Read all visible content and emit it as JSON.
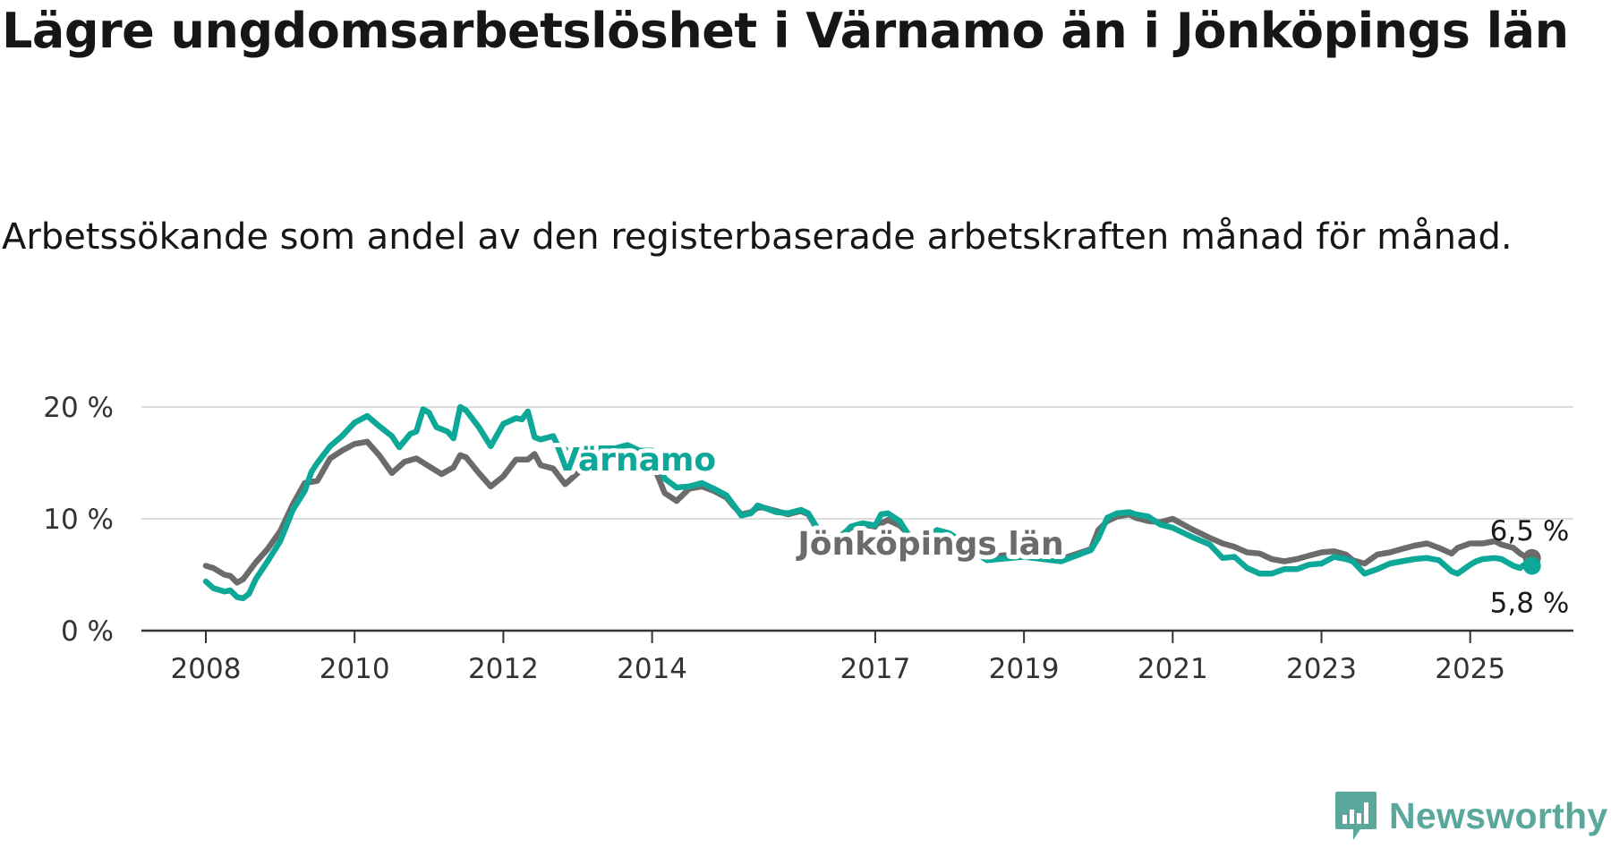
{
  "title": "Lägre ungdomsarbetslöshet i Värnamo än i Jönköpings län",
  "subtitle": "Arbetssökande som andel av den registerbaserade arbetskraften månad för månad.",
  "brand": {
    "name": "Newsworthy",
    "icon": "newsworthy-logo-icon",
    "color": "#5aa89c"
  },
  "colors": {
    "varnamo": "#0ea899",
    "jonkoping": "#6b6b6b",
    "grid": "#dddddd",
    "axis": "#333333"
  },
  "chart_data": {
    "type": "line",
    "x_unit": "year (decimal)",
    "y_unit": "%",
    "ylim": [
      0,
      20
    ],
    "xlim": [
      2007.1,
      2026.2
    ],
    "y_ticks": [
      0,
      10,
      20
    ],
    "y_tick_labels": [
      "0 %",
      "10 %",
      "20 %"
    ],
    "x_ticks": [
      2008,
      2010,
      2012,
      2014,
      2017,
      2019,
      2021,
      2023,
      2025
    ],
    "x_tick_labels": [
      "2008",
      "2010",
      "2012",
      "2014",
      "2017",
      "2019",
      "2021",
      "2023",
      "2025"
    ],
    "grid": "horizontal",
    "series": [
      {
        "name": "Värnamo",
        "color": "#0ea899",
        "end_label": "5,8 %",
        "points": [
          [
            2008.0,
            4.4
          ],
          [
            2008.1,
            3.8
          ],
          [
            2008.25,
            3.5
          ],
          [
            2008.33,
            3.6
          ],
          [
            2008.42,
            3.0
          ],
          [
            2008.5,
            2.9
          ],
          [
            2008.58,
            3.3
          ],
          [
            2008.67,
            4.6
          ],
          [
            2008.83,
            6.2
          ],
          [
            2009.0,
            8.0
          ],
          [
            2009.17,
            10.8
          ],
          [
            2009.33,
            12.5
          ],
          [
            2009.42,
            14.2
          ],
          [
            2009.5,
            15.0
          ],
          [
            2009.67,
            16.5
          ],
          [
            2009.83,
            17.4
          ],
          [
            2010.0,
            18.6
          ],
          [
            2010.17,
            19.2
          ],
          [
            2010.33,
            18.3
          ],
          [
            2010.5,
            17.4
          ],
          [
            2010.6,
            16.4
          ],
          [
            2010.75,
            17.6
          ],
          [
            2010.83,
            17.8
          ],
          [
            2010.92,
            19.8
          ],
          [
            2011.0,
            19.5
          ],
          [
            2011.1,
            18.2
          ],
          [
            2011.25,
            17.8
          ],
          [
            2011.33,
            17.2
          ],
          [
            2011.42,
            20.0
          ],
          [
            2011.5,
            19.7
          ],
          [
            2011.67,
            18.2
          ],
          [
            2011.83,
            16.5
          ],
          [
            2012.0,
            18.5
          ],
          [
            2012.17,
            19.0
          ],
          [
            2012.25,
            18.9
          ],
          [
            2012.33,
            19.6
          ],
          [
            2012.42,
            17.3
          ],
          [
            2012.5,
            17.1
          ],
          [
            2012.67,
            17.4
          ],
          [
            2012.75,
            16.3
          ],
          [
            2012.83,
            16.2
          ],
          [
            2012.92,
            15.8
          ],
          [
            2013.0,
            16.4
          ],
          [
            2013.12,
            16.3
          ],
          [
            2013.5,
            16.3
          ],
          [
            2013.67,
            16.6
          ],
          [
            2013.83,
            16.1
          ],
          [
            2014.0,
            16.1
          ],
          [
            2014.17,
            13.6
          ],
          [
            2014.33,
            12.8
          ],
          [
            2014.5,
            12.9
          ],
          [
            2014.67,
            13.2
          ],
          [
            2014.83,
            12.7
          ],
          [
            2015.0,
            12.1
          ],
          [
            2015.1,
            11.2
          ],
          [
            2015.2,
            10.3
          ],
          [
            2015.33,
            10.5
          ],
          [
            2015.42,
            11.2
          ],
          [
            2015.5,
            11.0
          ],
          [
            2015.67,
            10.6
          ],
          [
            2015.83,
            10.5
          ],
          [
            2016.0,
            10.8
          ],
          [
            2016.1,
            10.5
          ],
          [
            2016.2,
            9.4
          ],
          [
            2016.33,
            8.3
          ],
          [
            2016.5,
            8.1
          ],
          [
            2016.67,
            9.3
          ],
          [
            2016.83,
            9.6
          ],
          [
            2017.0,
            9.4
          ],
          [
            2017.08,
            10.4
          ],
          [
            2017.17,
            10.5
          ],
          [
            2017.33,
            9.8
          ],
          [
            2017.5,
            8.0
          ],
          [
            2017.67,
            8.1
          ],
          [
            2017.83,
            9.0
          ],
          [
            2018.0,
            8.7
          ],
          [
            2018.5,
            6.3
          ],
          [
            2019.0,
            6.6
          ],
          [
            2019.5,
            6.2
          ],
          [
            2019.9,
            7.2
          ],
          [
            2020.0,
            8.3
          ],
          [
            2020.12,
            10.1
          ],
          [
            2020.25,
            10.5
          ],
          [
            2020.42,
            10.6
          ],
          [
            2020.5,
            10.4
          ],
          [
            2020.67,
            10.2
          ],
          [
            2020.83,
            9.5
          ],
          [
            2021.0,
            9.2
          ],
          [
            2021.25,
            8.4
          ],
          [
            2021.5,
            7.7
          ],
          [
            2021.67,
            6.5
          ],
          [
            2021.83,
            6.6
          ],
          [
            2022.0,
            5.6
          ],
          [
            2022.17,
            5.1
          ],
          [
            2022.33,
            5.1
          ],
          [
            2022.5,
            5.5
          ],
          [
            2022.67,
            5.5
          ],
          [
            2022.83,
            5.9
          ],
          [
            2023.0,
            6.0
          ],
          [
            2023.17,
            6.6
          ],
          [
            2023.33,
            6.4
          ],
          [
            2023.42,
            6.2
          ],
          [
            2023.58,
            5.1
          ],
          [
            2023.75,
            5.5
          ],
          [
            2023.92,
            6.0
          ],
          [
            2024.08,
            6.2
          ],
          [
            2024.25,
            6.4
          ],
          [
            2024.42,
            6.5
          ],
          [
            2024.58,
            6.3
          ],
          [
            2024.75,
            5.3
          ],
          [
            2024.83,
            5.1
          ],
          [
            2025.0,
            5.9
          ],
          [
            2025.08,
            6.2
          ],
          [
            2025.17,
            6.4
          ],
          [
            2025.33,
            6.5
          ],
          [
            2025.42,
            6.4
          ],
          [
            2025.58,
            5.8
          ],
          [
            2025.67,
            5.6
          ],
          [
            2025.75,
            6.0
          ],
          [
            2025.83,
            5.8
          ]
        ]
      },
      {
        "name": "Jönköpings län",
        "color": "#6b6b6b",
        "end_label": "6,5 %",
        "points": [
          [
            2008.0,
            5.8
          ],
          [
            2008.1,
            5.6
          ],
          [
            2008.25,
            5.0
          ],
          [
            2008.33,
            4.9
          ],
          [
            2008.42,
            4.3
          ],
          [
            2008.5,
            4.6
          ],
          [
            2008.58,
            5.3
          ],
          [
            2008.67,
            6.1
          ],
          [
            2008.83,
            7.3
          ],
          [
            2009.0,
            8.9
          ],
          [
            2009.17,
            11.3
          ],
          [
            2009.33,
            13.2
          ],
          [
            2009.5,
            13.4
          ],
          [
            2009.67,
            15.4
          ],
          [
            2009.83,
            16.1
          ],
          [
            2010.0,
            16.7
          ],
          [
            2010.17,
            16.9
          ],
          [
            2010.33,
            15.7
          ],
          [
            2010.5,
            14.1
          ],
          [
            2010.67,
            15.1
          ],
          [
            2010.83,
            15.4
          ],
          [
            2011.0,
            14.7
          ],
          [
            2011.17,
            14.0
          ],
          [
            2011.33,
            14.6
          ],
          [
            2011.42,
            15.7
          ],
          [
            2011.5,
            15.5
          ],
          [
            2011.67,
            14.1
          ],
          [
            2011.83,
            12.9
          ],
          [
            2012.0,
            13.8
          ],
          [
            2012.17,
            15.3
          ],
          [
            2012.33,
            15.3
          ],
          [
            2012.42,
            15.8
          ],
          [
            2012.5,
            14.8
          ],
          [
            2012.67,
            14.5
          ],
          [
            2012.75,
            13.8
          ],
          [
            2012.83,
            13.1
          ],
          [
            2013.0,
            14.1
          ],
          [
            2013.12,
            14.8
          ],
          [
            2013.5,
            15.6
          ],
          [
            2014.0,
            15.1
          ],
          [
            2014.17,
            12.3
          ],
          [
            2014.33,
            11.6
          ],
          [
            2014.5,
            12.7
          ],
          [
            2014.67,
            12.9
          ],
          [
            2014.83,
            12.5
          ],
          [
            2015.0,
            11.9
          ],
          [
            2015.1,
            11.1
          ],
          [
            2015.2,
            10.4
          ],
          [
            2015.33,
            10.6
          ],
          [
            2015.42,
            11.0
          ],
          [
            2015.5,
            11.0
          ],
          [
            2015.67,
            10.7
          ],
          [
            2015.83,
            10.4
          ],
          [
            2016.0,
            10.7
          ],
          [
            2016.1,
            10.4
          ],
          [
            2016.2,
            9.3
          ],
          [
            2016.33,
            8.3
          ],
          [
            2016.5,
            8.3
          ],
          [
            2016.67,
            9.2
          ],
          [
            2016.83,
            9.5
          ],
          [
            2017.0,
            9.3
          ],
          [
            2017.17,
            9.9
          ],
          [
            2017.33,
            9.4
          ],
          [
            2017.5,
            8.3
          ],
          [
            2017.67,
            8.2
          ],
          [
            2017.83,
            8.6
          ],
          [
            2018.0,
            8.4
          ],
          [
            2018.5,
            6.6
          ],
          [
            2019.0,
            6.9
          ],
          [
            2019.5,
            6.4
          ],
          [
            2019.9,
            7.3
          ],
          [
            2020.0,
            9.0
          ],
          [
            2020.12,
            9.8
          ],
          [
            2020.25,
            10.2
          ],
          [
            2020.42,
            10.4
          ],
          [
            2020.5,
            10.1
          ],
          [
            2020.67,
            9.8
          ],
          [
            2020.83,
            9.7
          ],
          [
            2021.0,
            10.0
          ],
          [
            2021.25,
            9.1
          ],
          [
            2021.5,
            8.3
          ],
          [
            2021.67,
            7.8
          ],
          [
            2021.83,
            7.5
          ],
          [
            2022.0,
            7.0
          ],
          [
            2022.17,
            6.9
          ],
          [
            2022.33,
            6.4
          ],
          [
            2022.5,
            6.2
          ],
          [
            2022.67,
            6.4
          ],
          [
            2022.83,
            6.7
          ],
          [
            2023.0,
            7.0
          ],
          [
            2023.17,
            7.1
          ],
          [
            2023.33,
            6.8
          ],
          [
            2023.42,
            6.3
          ],
          [
            2023.58,
            6.0
          ],
          [
            2023.75,
            6.8
          ],
          [
            2023.92,
            7.0
          ],
          [
            2024.08,
            7.3
          ],
          [
            2024.25,
            7.6
          ],
          [
            2024.42,
            7.8
          ],
          [
            2024.58,
            7.4
          ],
          [
            2024.75,
            6.9
          ],
          [
            2024.83,
            7.4
          ],
          [
            2025.0,
            7.8
          ],
          [
            2025.17,
            7.8
          ],
          [
            2025.33,
            8.0
          ],
          [
            2025.42,
            7.7
          ],
          [
            2025.58,
            7.4
          ],
          [
            2025.67,
            6.9
          ],
          [
            2025.75,
            6.6
          ],
          [
            2025.83,
            6.5
          ]
        ]
      }
    ]
  }
}
